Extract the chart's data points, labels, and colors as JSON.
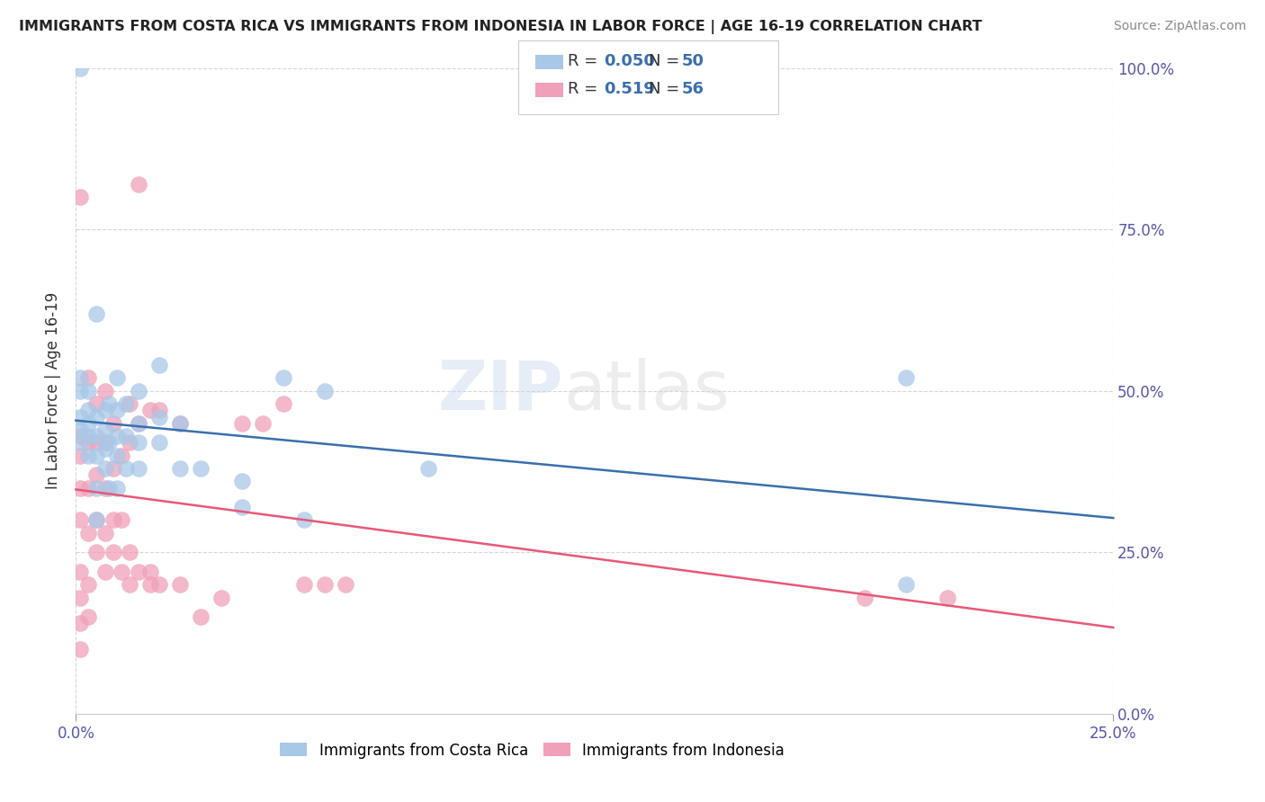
{
  "title": "IMMIGRANTS FROM COSTA RICA VS IMMIGRANTS FROM INDONESIA IN LABOR FORCE | AGE 16-19 CORRELATION CHART",
  "source": "Source: ZipAtlas.com",
  "ylabel": "In Labor Force | Age 16-19",
  "xlim": [
    0.0,
    0.25
  ],
  "ylim": [
    0.0,
    1.0
  ],
  "legend_labels": [
    "Immigrants from Costa Rica",
    "Immigrants from Indonesia"
  ],
  "r_costa_rica": 0.05,
  "n_costa_rica": 50,
  "r_indonesia": 0.519,
  "n_indonesia": 56,
  "blue_scatter_color": "#a8c8e8",
  "pink_scatter_color": "#f0a0b8",
  "blue_line_color": "#3a6fad",
  "pink_line_color": "#e85878",
  "watermark_zip_color": "#c8d8e8",
  "watermark_atlas_color": "#d0d0d0",
  "costa_rica_x": [
    0.001,
    0.001,
    0.001,
    0.001,
    0.001,
    0.001,
    0.003,
    0.003,
    0.003,
    0.003,
    0.003,
    0.005,
    0.005,
    0.005,
    0.005,
    0.005,
    0.005,
    0.007,
    0.007,
    0.007,
    0.007,
    0.008,
    0.008,
    0.008,
    0.01,
    0.01,
    0.01,
    0.01,
    0.01,
    0.012,
    0.012,
    0.012,
    0.015,
    0.015,
    0.015,
    0.015,
    0.02,
    0.02,
    0.02,
    0.025,
    0.025,
    0.03,
    0.04,
    0.04,
    0.05,
    0.055,
    0.06,
    0.085,
    0.2,
    0.2
  ],
  "costa_rica_y": [
    0.42,
    0.44,
    0.46,
    0.5,
    0.52,
    1.0,
    0.4,
    0.43,
    0.45,
    0.47,
    0.5,
    0.3,
    0.35,
    0.4,
    0.43,
    0.46,
    0.62,
    0.38,
    0.41,
    0.44,
    0.47,
    0.35,
    0.42,
    0.48,
    0.35,
    0.4,
    0.43,
    0.47,
    0.52,
    0.38,
    0.43,
    0.48,
    0.38,
    0.42,
    0.45,
    0.5,
    0.42,
    0.46,
    0.54,
    0.38,
    0.45,
    0.38,
    0.32,
    0.36,
    0.52,
    0.3,
    0.5,
    0.38,
    0.2,
    0.52
  ],
  "indonesia_x": [
    0.001,
    0.001,
    0.001,
    0.001,
    0.001,
    0.001,
    0.001,
    0.001,
    0.001,
    0.003,
    0.003,
    0.003,
    0.003,
    0.003,
    0.003,
    0.005,
    0.005,
    0.005,
    0.005,
    0.005,
    0.007,
    0.007,
    0.007,
    0.007,
    0.007,
    0.009,
    0.009,
    0.009,
    0.009,
    0.011,
    0.011,
    0.011,
    0.013,
    0.013,
    0.013,
    0.013,
    0.015,
    0.015,
    0.015,
    0.018,
    0.018,
    0.018,
    0.02,
    0.02,
    0.025,
    0.025,
    0.03,
    0.035,
    0.04,
    0.045,
    0.05,
    0.055,
    0.06,
    0.065,
    0.19,
    0.21
  ],
  "indonesia_y": [
    0.1,
    0.14,
    0.18,
    0.22,
    0.3,
    0.35,
    0.4,
    0.43,
    0.8,
    0.15,
    0.2,
    0.28,
    0.35,
    0.42,
    0.52,
    0.25,
    0.3,
    0.37,
    0.42,
    0.48,
    0.22,
    0.28,
    0.35,
    0.42,
    0.5,
    0.25,
    0.3,
    0.38,
    0.45,
    0.22,
    0.3,
    0.4,
    0.2,
    0.25,
    0.42,
    0.48,
    0.22,
    0.45,
    0.82,
    0.2,
    0.22,
    0.47,
    0.2,
    0.47,
    0.2,
    0.45,
    0.15,
    0.18,
    0.45,
    0.45,
    0.48,
    0.2,
    0.2,
    0.2,
    0.18,
    0.18
  ]
}
